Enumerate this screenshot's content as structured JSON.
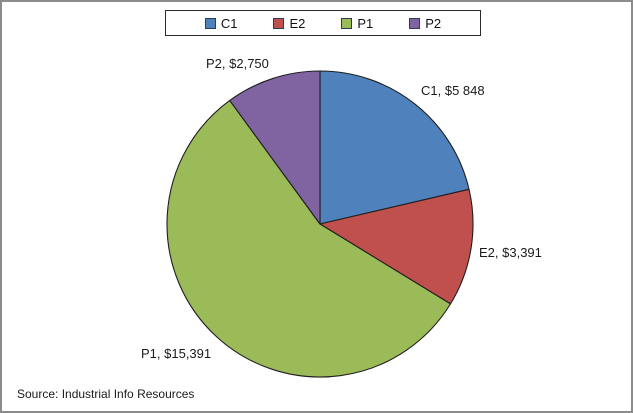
{
  "source_note": "Source: Industrial Info Resources",
  "chart_data": {
    "type": "pie",
    "legend_position": "top",
    "direction": "clockwise",
    "start_angle_deg": 0,
    "labels_position": "outside",
    "total": 27380,
    "slice_border_color": "#1f1f1f",
    "slices": [
      {
        "name": "C1",
        "value": 5848,
        "label": "C1, $5 848",
        "color": "#4f81bd"
      },
      {
        "name": "E2",
        "value": 3391,
        "label": "E2, $3,391",
        "color": "#c0504d"
      },
      {
        "name": "P1",
        "value": 15391,
        "label": "P1, $15,391",
        "color": "#9bbb59"
      },
      {
        "name": "P2",
        "value": 2750,
        "label": "P2, $2,750",
        "color": "#8064a2"
      }
    ]
  }
}
